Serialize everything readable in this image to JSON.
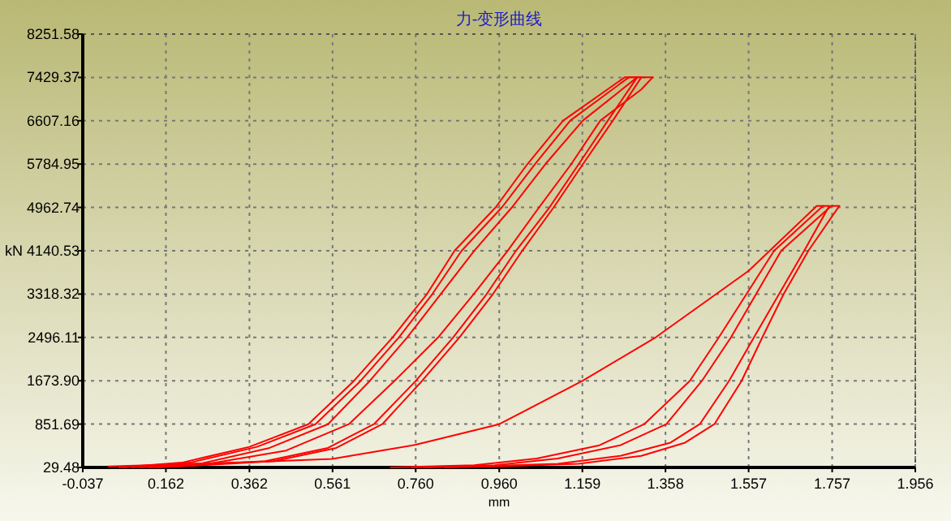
{
  "chart_data": {
    "type": "line",
    "title": "力-变形曲线",
    "xlabel": "mm",
    "ylabel": "kN",
    "xlim": [
      -0.037,
      1.956
    ],
    "ylim": [
      29.48,
      8251.58
    ],
    "xticks": [
      -0.037,
      0.162,
      0.362,
      0.561,
      {
        "value": 0.76,
        "label": "0.760"
      },
      {
        "value": 0.96,
        "label": "0.960"
      },
      1.159,
      1.358,
      1.557,
      1.757,
      1.956
    ],
    "yticks": [
      29.48,
      851.69,
      {
        "value": 1673.9,
        "label": "1673.90"
      },
      2496.11,
      3318.32,
      4140.53,
      4962.74,
      5784.95,
      6607.16,
      7429.37,
      8251.58
    ],
    "grid": true,
    "marker": "none",
    "line_style": "solid",
    "series": [
      {
        "color": "#ff0000",
        "x": [
          0.05,
          0.2,
          0.362,
          0.503,
          0.612,
          0.705,
          0.787,
          0.853,
          0.951,
          1.027,
          1.113,
          1.26,
          1.29
        ],
        "values": [
          30,
          120,
          420,
          850,
          1670,
          2500,
          3320,
          4140,
          4960,
          5780,
          6610,
          7430,
          7430
        ]
      },
      {
        "color": "#ff0000",
        "x": [
          0.1,
          0.2,
          0.4,
          0.55,
          0.66,
          0.76,
          0.85,
          0.93,
          1.0,
          1.08,
          1.15,
          1.22,
          1.29
        ],
        "values": [
          30,
          60,
          150,
          400,
          850,
          1670,
          2500,
          3320,
          4140,
          4960,
          5780,
          6610,
          7430
        ]
      },
      {
        "color": "#ff0000",
        "x": [
          0.06,
          0.22,
          0.38,
          0.52,
          0.628,
          0.72,
          0.8,
          0.87,
          0.966,
          1.045,
          1.13,
          1.27,
          1.3
        ],
        "values": [
          30,
          120,
          420,
          850,
          1670,
          2500,
          3320,
          4140,
          4960,
          5780,
          6610,
          7430,
          7430
        ]
      },
      {
        "color": "#ff0000",
        "x": [
          0.12,
          0.22,
          0.42,
          0.57,
          0.68,
          0.775,
          0.865,
          0.945,
          1.015,
          1.09,
          1.16,
          1.232,
          1.3
        ],
        "values": [
          30,
          60,
          150,
          400,
          850,
          1670,
          2500,
          3320,
          4140,
          4960,
          5780,
          6610,
          7430
        ]
      },
      {
        "color": "#ff0000",
        "x": [
          0.08,
          0.25,
          0.41,
          0.55,
          0.65,
          0.74,
          0.82,
          0.9,
          0.99,
          1.07,
          1.16,
          1.29,
          1.327
        ],
        "values": [
          30,
          110,
          400,
          850,
          1670,
          2500,
          3320,
          4140,
          4960,
          5780,
          6610,
          7430,
          7430
        ]
      },
      {
        "color": "#ff0000",
        "x": [
          0.14,
          0.25,
          0.45,
          0.6,
          0.709,
          0.814,
          0.899,
          0.98,
          1.055,
          1.132,
          1.202,
          1.3,
          1.327
        ],
        "values": [
          30,
          80,
          350,
          850,
          1670,
          2500,
          3320,
          4140,
          4960,
          5780,
          6610,
          7200,
          7430
        ]
      },
      {
        "color": "#ff0000",
        "x": [
          0.7,
          0.9,
          1.05,
          1.2,
          1.307,
          1.416,
          1.486,
          1.552,
          1.618,
          1.735,
          1.75
        ],
        "values": [
          30,
          70,
          200,
          450,
          850,
          1670,
          2500,
          3320,
          4140,
          4990,
          4990
        ]
      },
      {
        "color": "#ff0000",
        "x": [
          0.78,
          0.9,
          1.1,
          1.25,
          1.37,
          1.44,
          1.51,
          1.57,
          1.63,
          1.69,
          1.75
        ],
        "values": [
          30,
          50,
          100,
          250,
          500,
          850,
          1670,
          2500,
          3320,
          4140,
          4990
        ]
      },
      {
        "color": "#ff0000",
        "x": [
          0.75,
          0.95,
          1.1,
          1.25,
          1.36,
          1.445,
          1.515,
          1.575,
          1.635,
          1.755,
          1.774
        ],
        "values": [
          30,
          70,
          200,
          450,
          850,
          1670,
          2500,
          3320,
          4140,
          4990,
          4990
        ]
      },
      {
        "color": "#ff0000",
        "x": [
          0.83,
          0.95,
          1.15,
          1.3,
          1.405,
          1.475,
          1.54,
          1.59,
          1.641,
          1.7,
          1.774
        ],
        "values": [
          30,
          50,
          100,
          250,
          500,
          850,
          1670,
          2500,
          3320,
          4140,
          4990
        ]
      },
      {
        "color": "#ff0000",
        "x": [
          0.025,
          0.2,
          0.4,
          0.56,
          0.76,
          0.96,
          1.159,
          1.335,
          1.557,
          1.72,
          1.735
        ],
        "values": [
          50,
          90,
          140,
          190,
          460,
          850,
          1670,
          2500,
          3760,
          4990,
          4990
        ]
      }
    ]
  }
}
